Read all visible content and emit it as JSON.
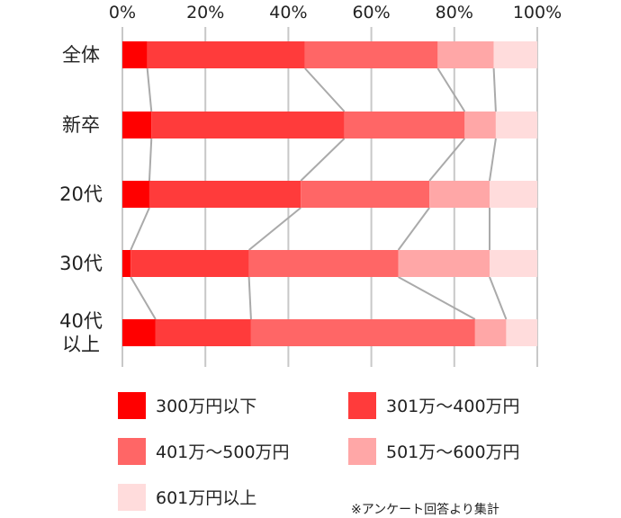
{
  "chart_data": {
    "type": "bar",
    "orientation": "horizontal",
    "stacked": true,
    "percent_stacked": true,
    "categories": [
      "全体",
      "新卒",
      "20代",
      "30代",
      "40代\n以上"
    ],
    "series": [
      {
        "name": "300万円以下",
        "color": "#ff0000",
        "values": [
          6,
          7,
          6.5,
          2,
          8
        ]
      },
      {
        "name": "301万～400万円",
        "color": "#ff3b3b",
        "values": [
          38,
          46.5,
          36.5,
          28.5,
          23
        ]
      },
      {
        "name": "401万～500万円",
        "color": "#ff6666",
        "values": [
          32,
          29,
          31,
          36,
          54
        ]
      },
      {
        "name": "501万～600万円",
        "color": "#ffa7a7",
        "values": [
          13.5,
          7.5,
          14.5,
          22,
          7.5
        ]
      },
      {
        "name": "601万円以上",
        "color": "#ffdcdc",
        "values": [
          10.5,
          10,
          11.5,
          11.5,
          7.5
        ]
      }
    ],
    "xlim": [
      0,
      100
    ],
    "x_ticks": [
      "0%",
      "20%",
      "40%",
      "60%",
      "80%",
      "100%"
    ],
    "x_tick_values": [
      0,
      20,
      40,
      60,
      80,
      100
    ],
    "grid": true,
    "grid_color": "#c8c8c8",
    "connector_color": "#aaaaaa",
    "legend_position": "bottom",
    "note": "※アンケート回答より集計"
  }
}
